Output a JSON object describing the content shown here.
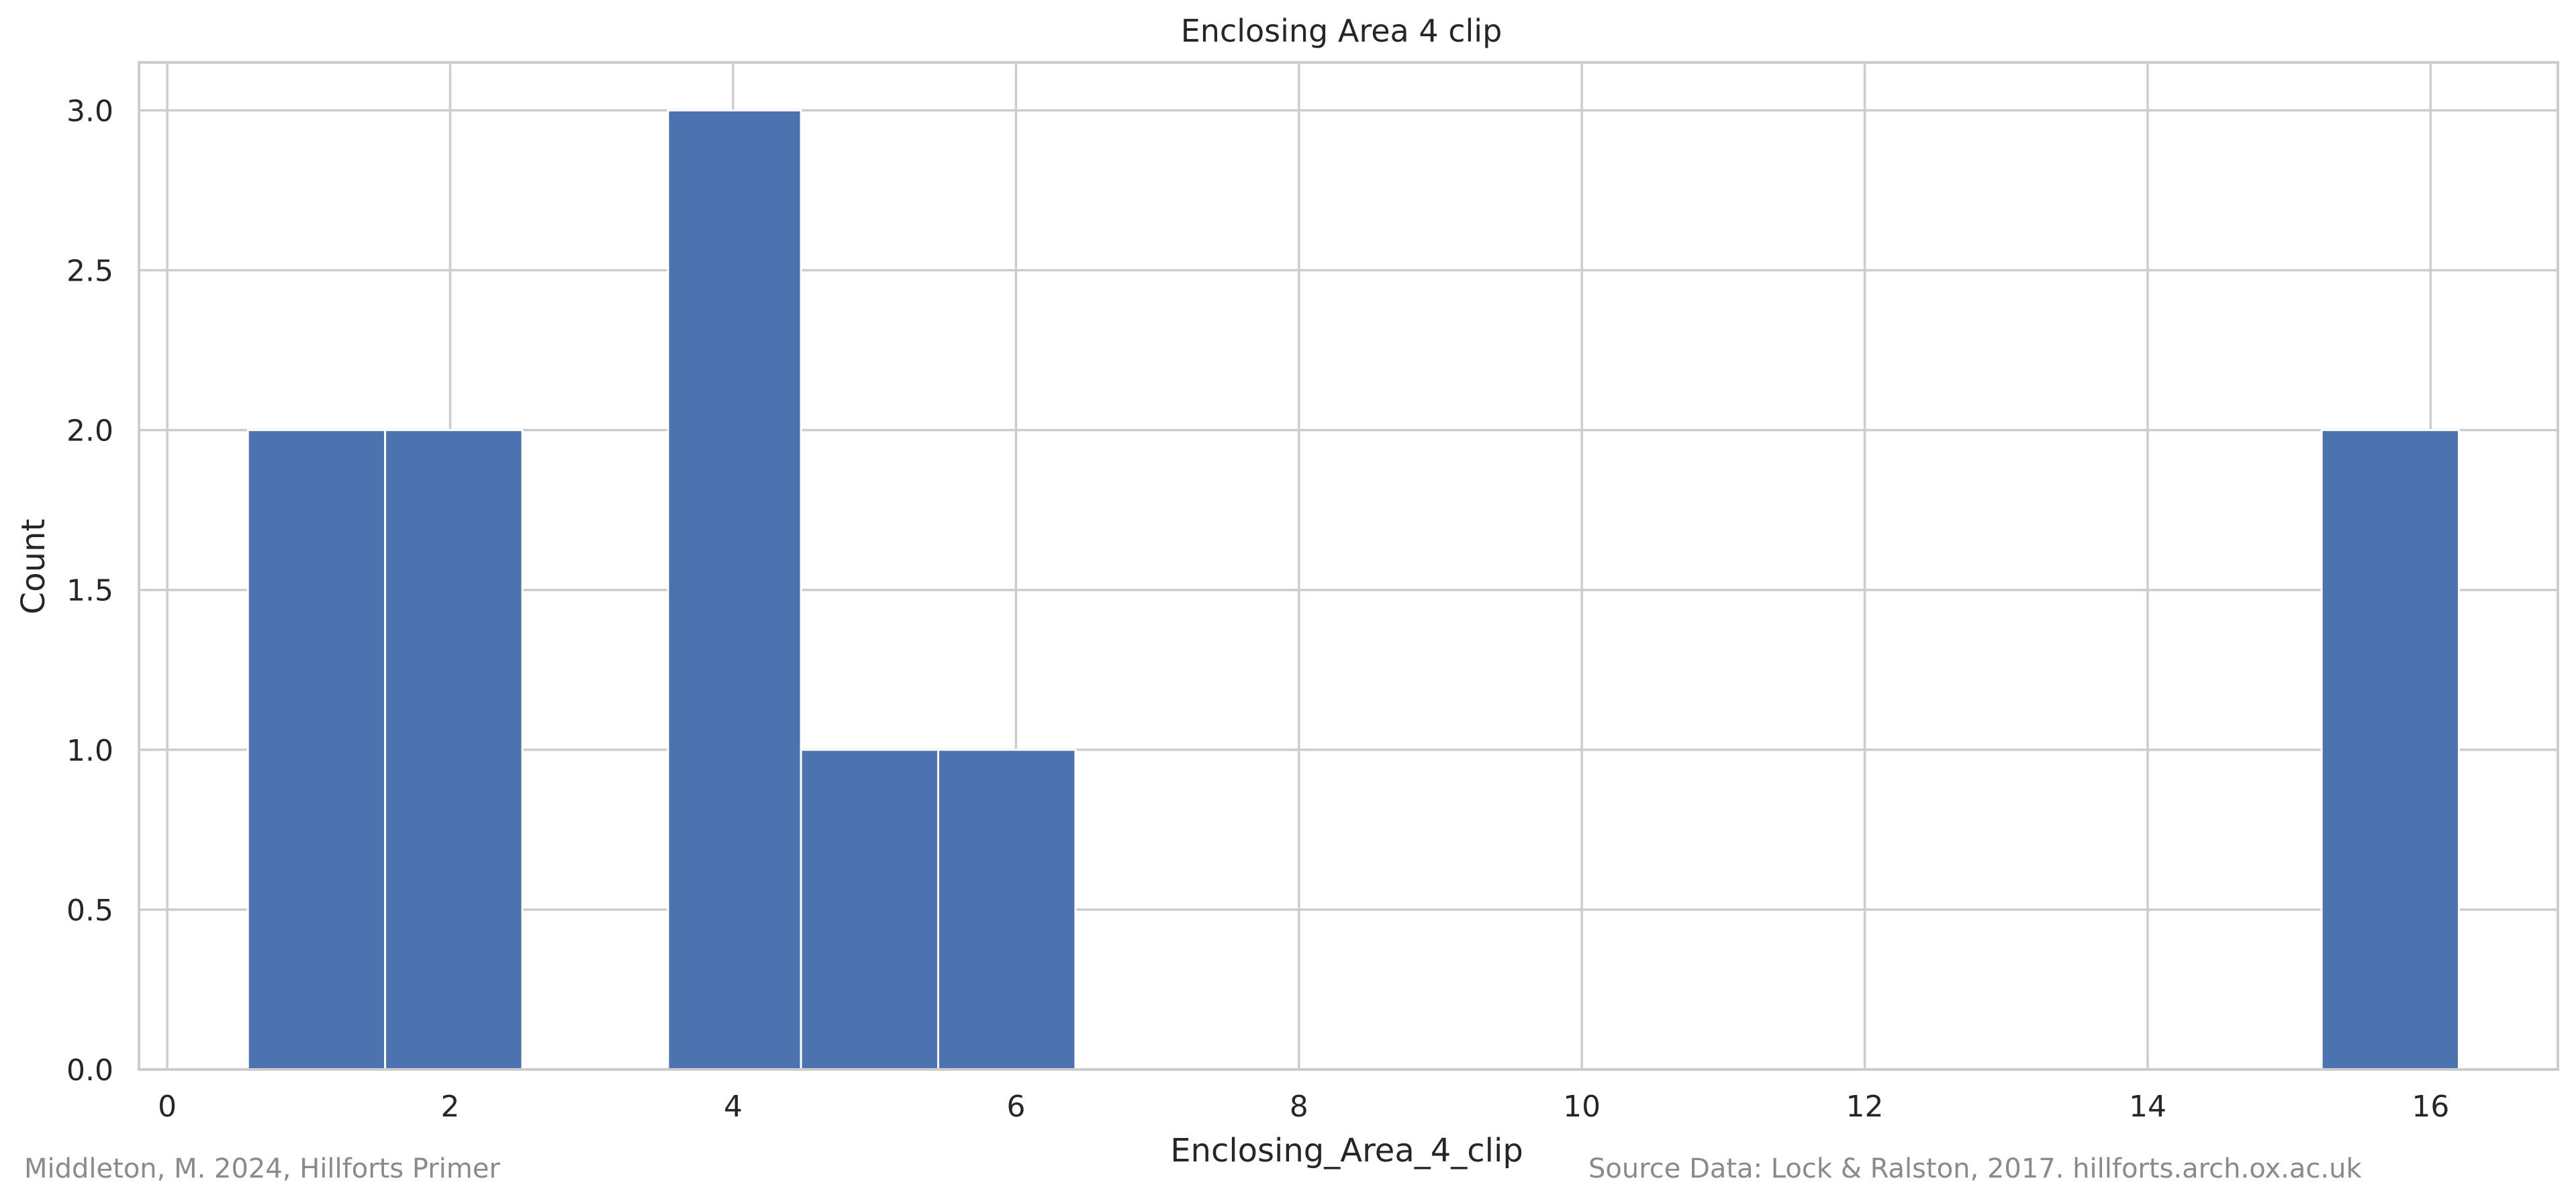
{
  "chart_data": {
    "type": "bar",
    "title": "Enclosing Area 4 clip",
    "xlabel": "Enclosing_Area_4_clip",
    "ylabel": "Count",
    "xlim": [
      -0.2,
      16.9
    ],
    "ylim": [
      0,
      3.15
    ],
    "x_ticks": [
      0,
      2,
      4,
      6,
      8,
      10,
      12,
      14,
      16
    ],
    "y_ticks": [
      0.0,
      0.5,
      1.0,
      1.5,
      2.0,
      2.5,
      3.0
    ],
    "grid": true,
    "bar_color": "#4c72b0",
    "bins": [
      {
        "x0": 0.57,
        "x1": 1.54,
        "count": 2
      },
      {
        "x0": 1.54,
        "x1": 2.51,
        "count": 2
      },
      {
        "x0": 3.54,
        "x1": 4.48,
        "count": 3
      },
      {
        "x0": 4.48,
        "x1": 5.45,
        "count": 1
      },
      {
        "x0": 5.45,
        "x1": 6.42,
        "count": 1
      },
      {
        "x0": 15.23,
        "x1": 16.2,
        "count": 2
      }
    ]
  },
  "footer": {
    "left": "Middleton, M. 2024, Hillforts Primer",
    "right": "Source Data: Lock & Ralston, 2017. hillforts.arch.ox.ac.uk"
  }
}
